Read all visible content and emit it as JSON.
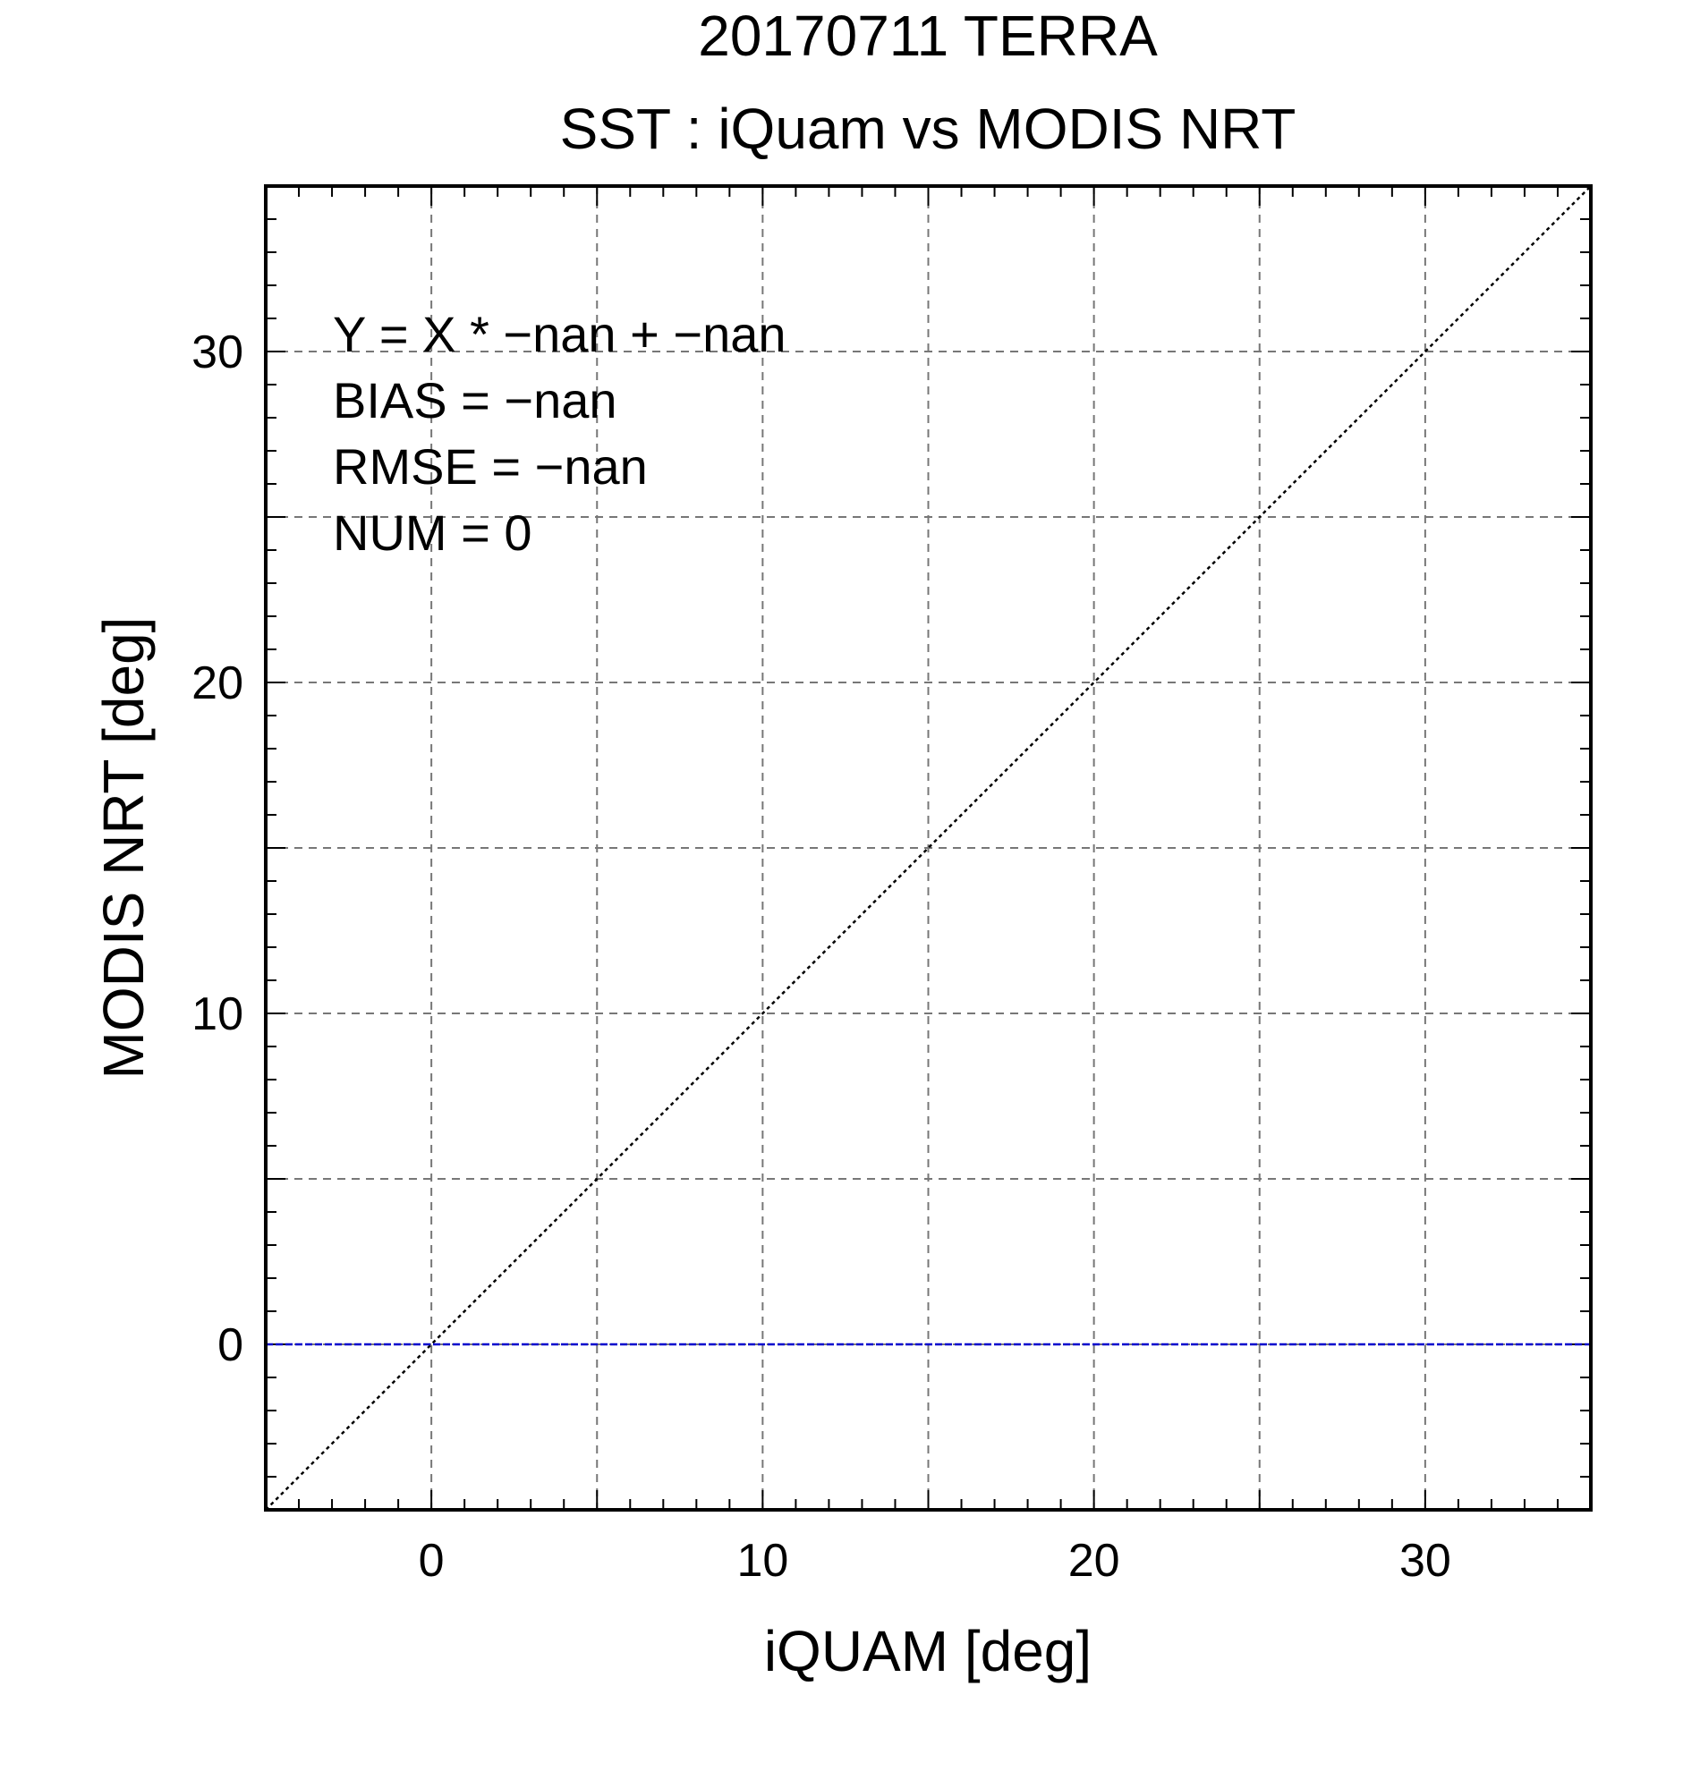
{
  "chart_data": {
    "type": "scatter",
    "title": "20170711 TERRA",
    "subtitle": "SST : iQuam vs MODIS NRT",
    "xlabel": "iQUAM [deg]",
    "ylabel": "MODIS NRT [deg]",
    "xlim": [
      -5,
      35
    ],
    "ylim": [
      -5,
      35
    ],
    "xticks": [
      0,
      10,
      20,
      30
    ],
    "yticks": [
      0,
      10,
      20,
      30
    ],
    "xtick_labels": [
      "0",
      "10",
      "20",
      "30"
    ],
    "ytick_labels": [
      "0",
      "10",
      "20",
      "30"
    ],
    "grid": true,
    "grid_step": 5,
    "minor_tick_step": 1,
    "points": [],
    "reference_lines": [
      {
        "kind": "one-to-one",
        "style": "dotted",
        "color": "#000000"
      },
      {
        "kind": "horizontal",
        "y": 0,
        "style": "dashed",
        "color": "#0000cc"
      }
    ],
    "annotations": [
      "Y = X * −nan + −nan",
      "BIAS = −nan",
      "RMSE = −nan",
      "NUM = 0"
    ]
  }
}
